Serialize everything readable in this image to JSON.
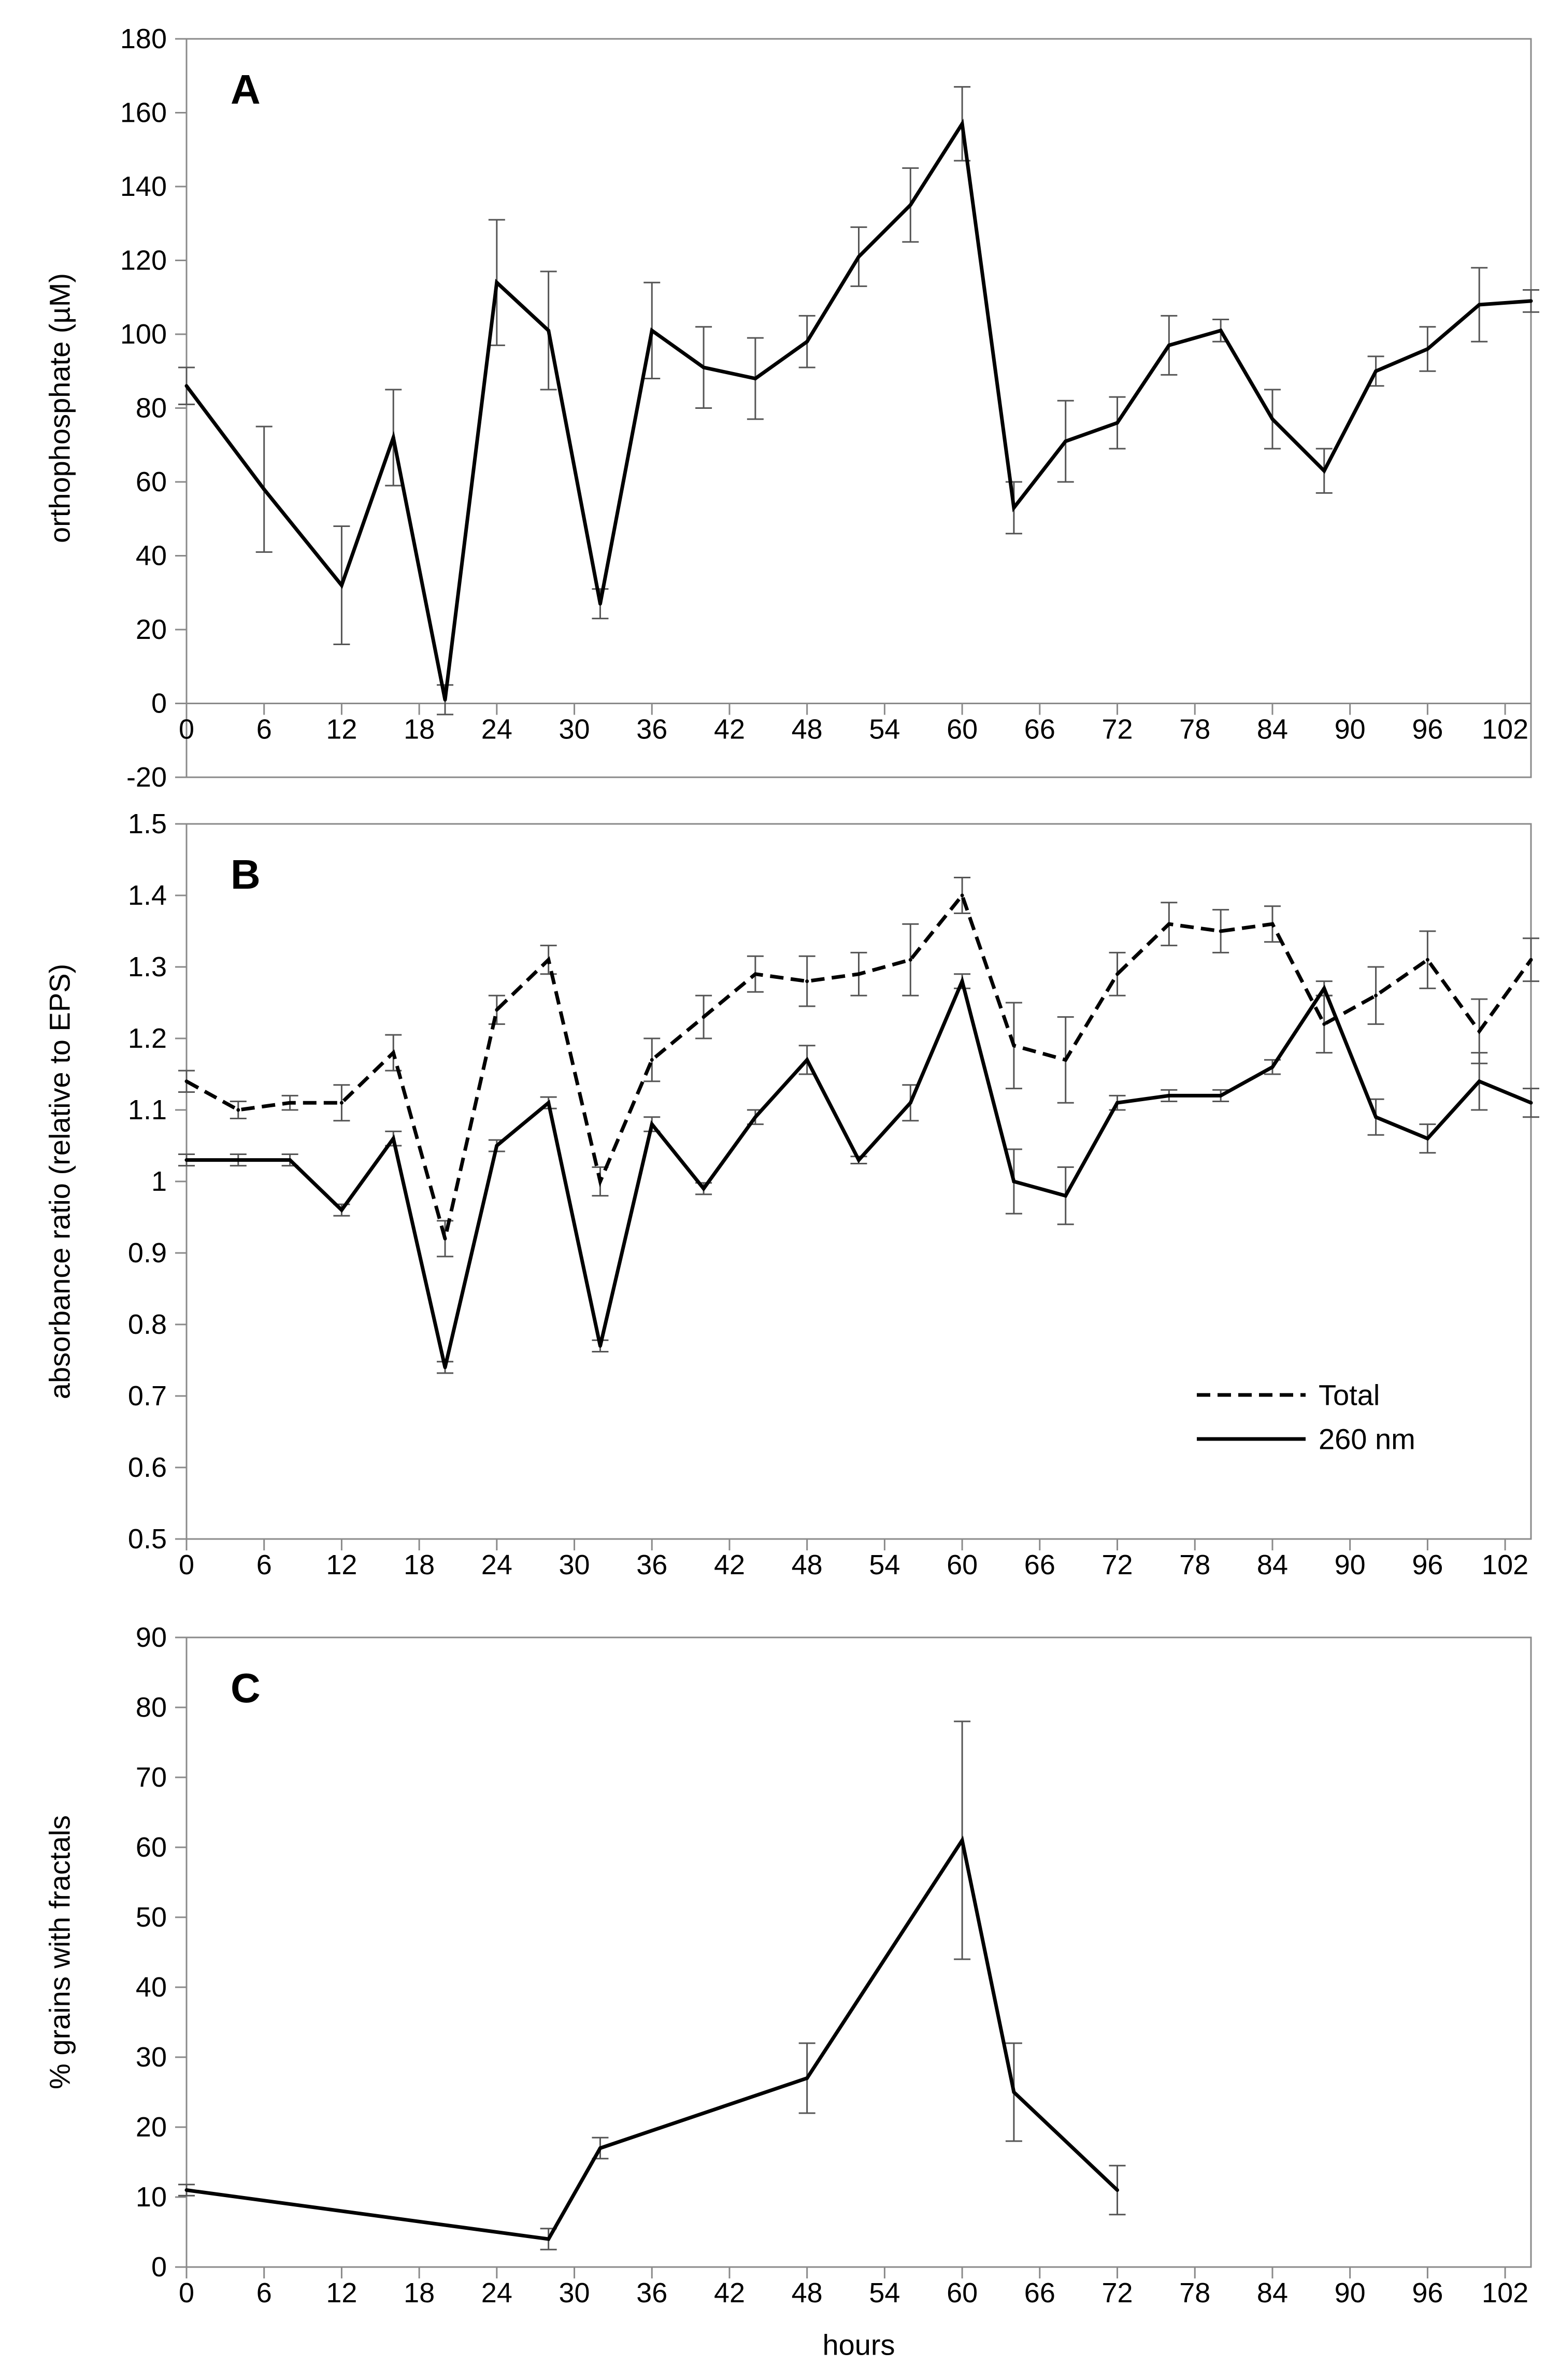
{
  "chart_data": [
    {
      "type": "line",
      "panel_label": "A",
      "ylabel": "orthophosphate  (µM)",
      "xlabel": "",
      "ylim": [
        -20,
        180
      ],
      "yticks": [
        -20,
        0,
        20,
        40,
        60,
        80,
        100,
        120,
        140,
        160,
        180
      ],
      "xlim": [
        0,
        104
      ],
      "xticks": [
        0,
        6,
        12,
        18,
        24,
        30,
        36,
        42,
        48,
        54,
        60,
        66,
        72,
        78,
        84,
        90,
        96,
        102
      ],
      "grid": false,
      "legend": null,
      "series": [
        {
          "name": "",
          "style": "solid",
          "x": [
            0,
            6,
            12,
            16,
            20,
            24,
            28,
            32,
            36,
            40,
            44,
            48,
            52,
            56,
            60,
            64,
            68,
            72,
            76,
            80,
            84,
            88,
            92,
            96,
            100,
            104
          ],
          "y": [
            86,
            58,
            32,
            72,
            1,
            114,
            101,
            27,
            101,
            91,
            88,
            98,
            121,
            135,
            157,
            53,
            71,
            76,
            97,
            101,
            77,
            63,
            90,
            96,
            108,
            109
          ],
          "err": [
            5,
            17,
            16,
            13,
            4,
            17,
            16,
            4,
            13,
            11,
            11,
            7,
            8,
            10,
            10,
            7,
            11,
            7,
            8,
            3,
            8,
            6,
            4,
            6,
            10,
            3
          ]
        }
      ]
    },
    {
      "type": "line",
      "panel_label": "B",
      "ylabel": "absorbance ratio (relative to EPS)",
      "xlabel": "",
      "ylim": [
        0.5,
        1.5
      ],
      "yticks": [
        0.5,
        0.6,
        0.7,
        0.8,
        0.9,
        1,
        1.1,
        1.2,
        1.3,
        1.4,
        1.5
      ],
      "xlim": [
        0,
        104
      ],
      "xticks": [
        0,
        6,
        12,
        18,
        24,
        30,
        36,
        42,
        48,
        54,
        60,
        66,
        72,
        78,
        84,
        90,
        96,
        102
      ],
      "grid": false,
      "legend": "bottom-right",
      "series": [
        {
          "name": "Total",
          "style": "dashed",
          "x": [
            0,
            4,
            8,
            12,
            16,
            20,
            24,
            28,
            32,
            36,
            40,
            44,
            48,
            52,
            56,
            60,
            64,
            68,
            72,
            76,
            80,
            84,
            88,
            92,
            96,
            100,
            104
          ],
          "y": [
            1.14,
            1.1,
            1.11,
            1.11,
            1.18,
            0.92,
            1.24,
            1.31,
            1.0,
            1.17,
            1.23,
            1.29,
            1.28,
            1.29,
            1.31,
            1.4,
            1.19,
            1.17,
            1.29,
            1.36,
            1.35,
            1.36,
            1.22,
            1.26,
            1.31,
            1.21,
            1.31
          ],
          "err": [
            0.015,
            0.012,
            0.01,
            0.025,
            0.025,
            0.025,
            0.02,
            0.02,
            0.02,
            0.03,
            0.03,
            0.025,
            0.035,
            0.03,
            0.05,
            0.025,
            0.06,
            0.06,
            0.03,
            0.03,
            0.03,
            0.025,
            0.04,
            0.04,
            0.04,
            0.045,
            0.03
          ]
        },
        {
          "name": "260 nm",
          "style": "solid",
          "x": [
            0,
            4,
            8,
            12,
            16,
            20,
            24,
            28,
            32,
            36,
            40,
            44,
            48,
            52,
            56,
            60,
            64,
            68,
            72,
            76,
            80,
            84,
            88,
            92,
            96,
            100,
            104
          ],
          "y": [
            1.03,
            1.03,
            1.03,
            0.96,
            1.06,
            0.74,
            1.05,
            1.11,
            0.77,
            1.08,
            0.99,
            1.09,
            1.17,
            1.03,
            1.11,
            1.28,
            1.0,
            0.98,
            1.11,
            1.12,
            1.12,
            1.16,
            1.27,
            1.09,
            1.06,
            1.14,
            1.11
          ],
          "err": [
            0.008,
            0.008,
            0.008,
            0.008,
            0.01,
            0.008,
            0.008,
            0.008,
            0.008,
            0.01,
            0.008,
            0.01,
            0.02,
            0.005,
            0.025,
            0.01,
            0.045,
            0.04,
            0.01,
            0.008,
            0.008,
            0.01,
            0.01,
            0.025,
            0.02,
            0.04,
            0.02
          ]
        }
      ]
    },
    {
      "type": "line",
      "panel_label": "C",
      "ylabel": "% grains with fractals",
      "xlabel": "hours",
      "ylim": [
        0,
        90
      ],
      "yticks": [
        0,
        10,
        20,
        30,
        40,
        50,
        60,
        70,
        80,
        90
      ],
      "xlim": [
        0,
        104
      ],
      "xticks": [
        0,
        6,
        12,
        18,
        24,
        30,
        36,
        42,
        48,
        54,
        60,
        66,
        72,
        78,
        84,
        90,
        96,
        102
      ],
      "grid": false,
      "legend": null,
      "series": [
        {
          "name": "",
          "style": "solid",
          "x": [
            0,
            28,
            32,
            48,
            60,
            64,
            72
          ],
          "y": [
            11,
            4,
            17,
            27,
            61,
            25,
            11
          ],
          "err": [
            0.8,
            1.5,
            1.5,
            5,
            17,
            7,
            3.5
          ]
        }
      ]
    }
  ]
}
